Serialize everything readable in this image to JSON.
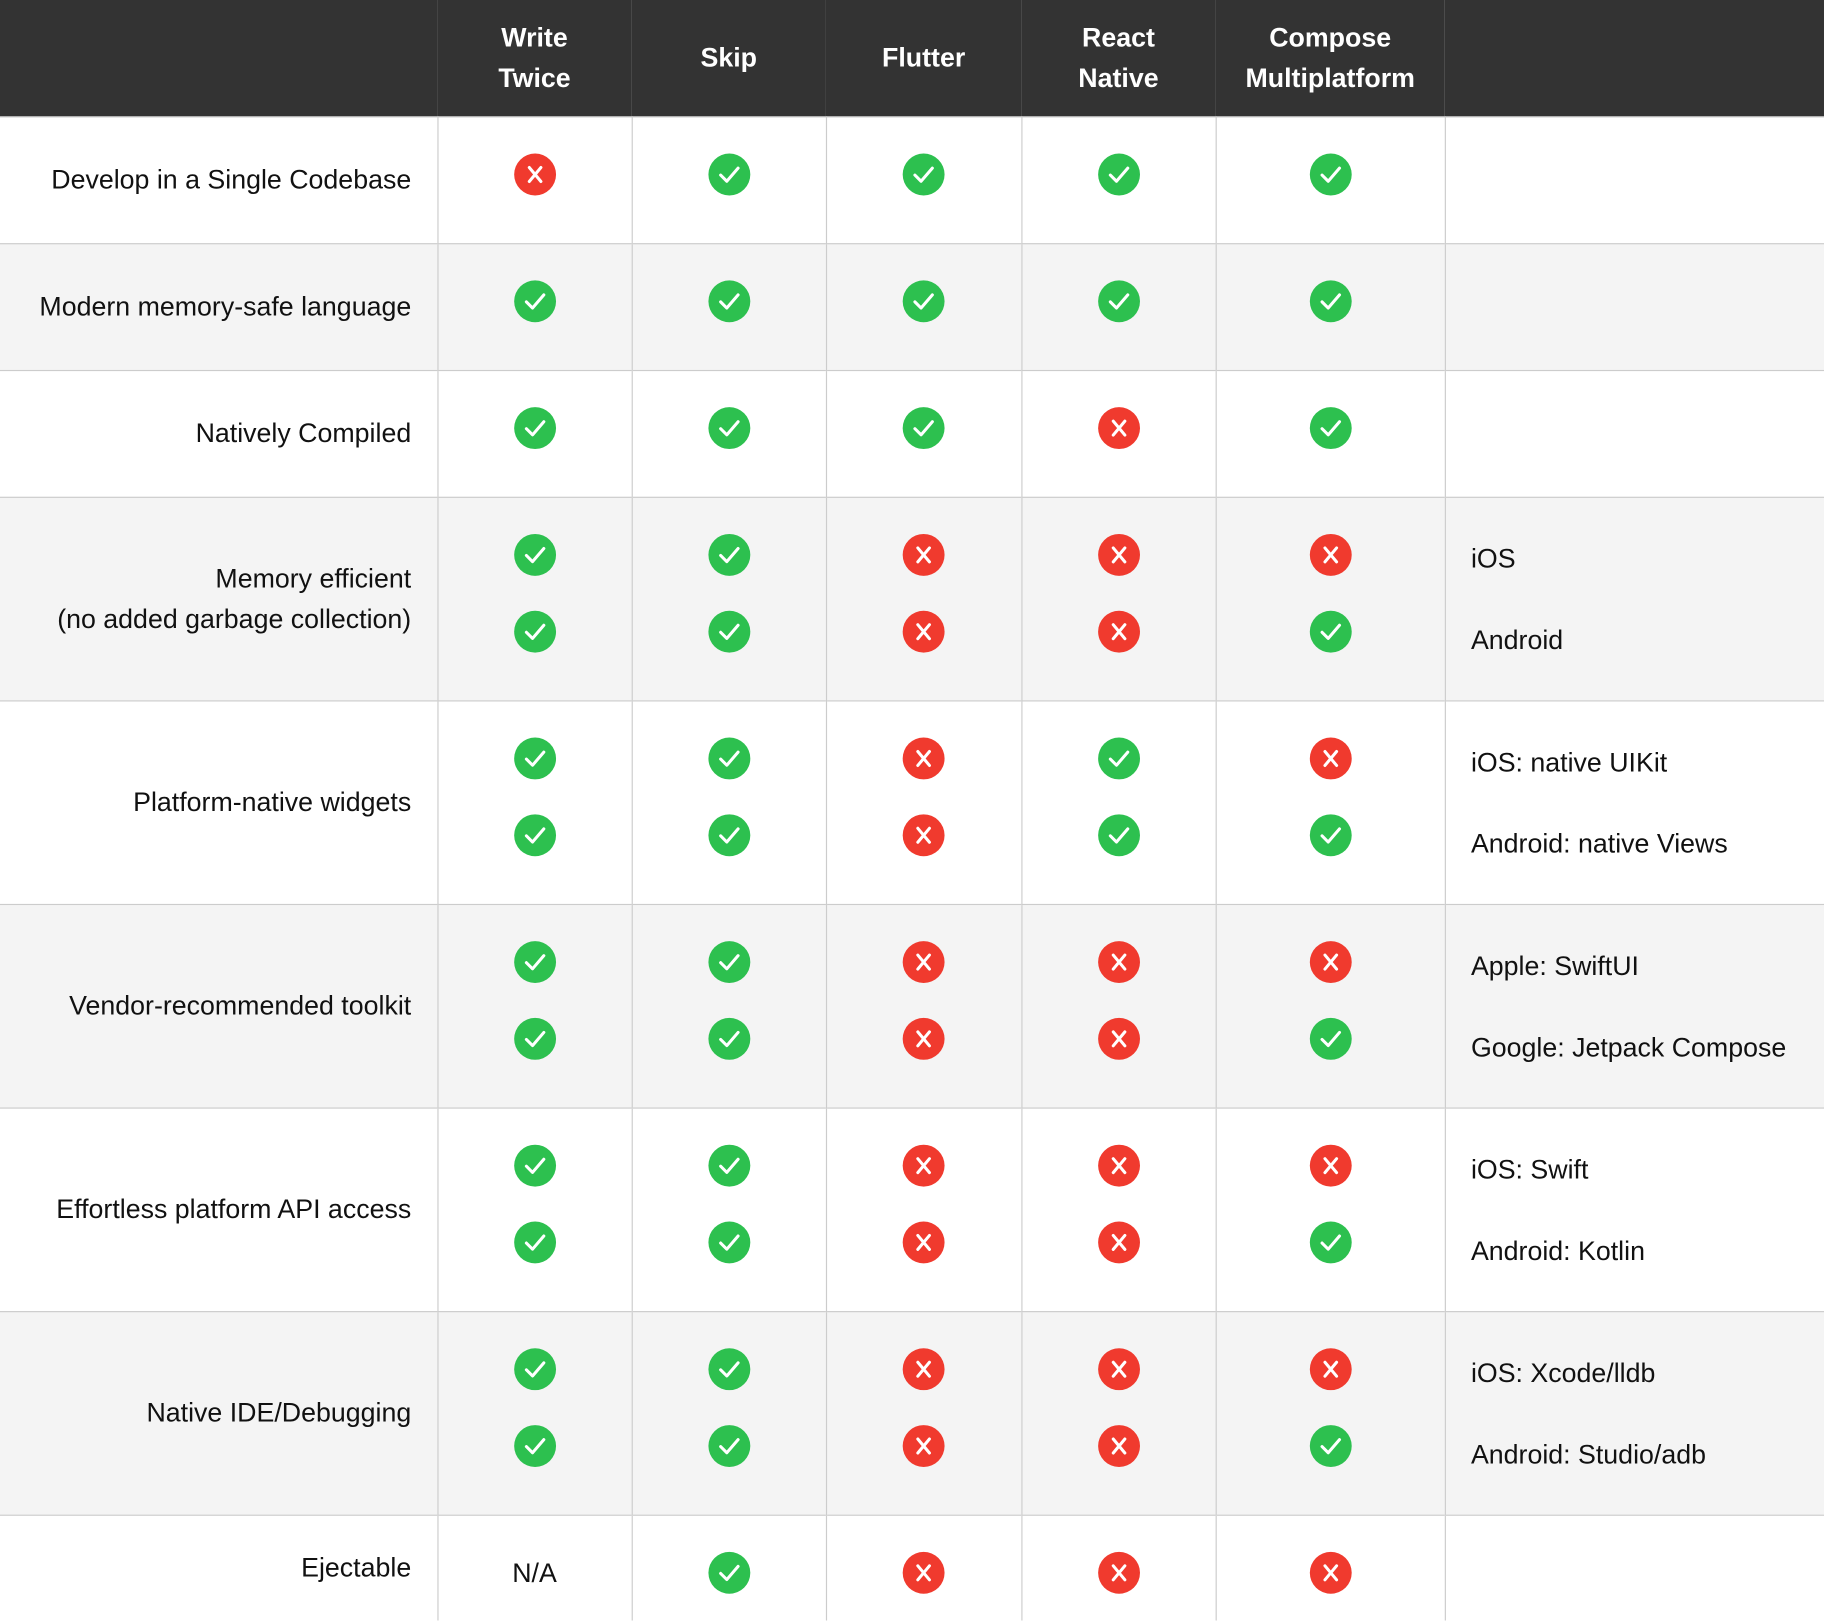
{
  "colors": {
    "header_bg": "#333333",
    "check": "#2dc04f",
    "cross": "#f03a2e",
    "row_alt": "#f4f4f4",
    "grid": "#cccccc"
  },
  "header": {
    "columns": [
      {
        "id": "write-twice",
        "line1": "Write",
        "line2": "Twice"
      },
      {
        "id": "skip",
        "line1": "Skip",
        "line2": ""
      },
      {
        "id": "flutter",
        "line1": "Flutter",
        "line2": ""
      },
      {
        "id": "react-native",
        "line1": "React",
        "line2": "Native"
      },
      {
        "id": "compose-multiplatform",
        "line1": "Compose",
        "line2": "Multiplatform"
      }
    ]
  },
  "rows": [
    {
      "id": "single-codebase",
      "feature": [
        "Develop in a Single Codebase"
      ],
      "values": [
        [
          "cross"
        ],
        [
          "check"
        ],
        [
          "check"
        ],
        [
          "check"
        ],
        [
          "check"
        ]
      ],
      "notes": []
    },
    {
      "id": "memory-safe",
      "feature": [
        "Modern memory-safe language"
      ],
      "values": [
        [
          "check"
        ],
        [
          "check"
        ],
        [
          "check"
        ],
        [
          "check"
        ],
        [
          "check"
        ]
      ],
      "notes": []
    },
    {
      "id": "natively-compiled",
      "feature": [
        "Natively Compiled"
      ],
      "values": [
        [
          "check"
        ],
        [
          "check"
        ],
        [
          "check"
        ],
        [
          "cross"
        ],
        [
          "check"
        ]
      ],
      "notes": []
    },
    {
      "id": "memory-efficient",
      "feature": [
        "Memory efficient",
        "(no added garbage collection)"
      ],
      "values": [
        [
          "check",
          "check"
        ],
        [
          "check",
          "check"
        ],
        [
          "cross",
          "cross"
        ],
        [
          "cross",
          "cross"
        ],
        [
          "cross",
          "check"
        ]
      ],
      "notes": [
        "iOS",
        "Android"
      ]
    },
    {
      "id": "native-widgets",
      "feature": [
        "Platform-native widgets"
      ],
      "values": [
        [
          "check",
          "check"
        ],
        [
          "check",
          "check"
        ],
        [
          "cross",
          "cross"
        ],
        [
          "check",
          "check"
        ],
        [
          "cross",
          "check"
        ]
      ],
      "notes": [
        "iOS: native UIKit",
        "Android: native Views"
      ]
    },
    {
      "id": "vendor-toolkit",
      "feature": [
        "Vendor-recommended toolkit"
      ],
      "values": [
        [
          "check",
          "check"
        ],
        [
          "check",
          "check"
        ],
        [
          "cross",
          "cross"
        ],
        [
          "cross",
          "cross"
        ],
        [
          "cross",
          "check"
        ]
      ],
      "notes": [
        "Apple: SwiftUI",
        "Google: Jetpack Compose"
      ]
    },
    {
      "id": "api-access",
      "feature": [
        "Effortless platform API access"
      ],
      "values": [
        [
          "check",
          "check"
        ],
        [
          "check",
          "check"
        ],
        [
          "cross",
          "cross"
        ],
        [
          "cross",
          "cross"
        ],
        [
          "cross",
          "check"
        ]
      ],
      "notes": [
        "iOS: Swift",
        "Android: Kotlin"
      ]
    },
    {
      "id": "ide-debugging",
      "feature": [
        "Native IDE/Debugging"
      ],
      "values": [
        [
          "check",
          "check"
        ],
        [
          "check",
          "check"
        ],
        [
          "cross",
          "cross"
        ],
        [
          "cross",
          "cross"
        ],
        [
          "cross",
          "check"
        ]
      ],
      "notes": [
        "iOS: Xcode/lldb",
        "Android: Studio/adb"
      ]
    },
    {
      "id": "ejectable",
      "feature": [
        "Ejectable"
      ],
      "values": [
        [
          "N/A"
        ],
        [
          "check"
        ],
        [
          "cross"
        ],
        [
          "cross"
        ],
        [
          "cross"
        ]
      ],
      "notes": []
    }
  ]
}
